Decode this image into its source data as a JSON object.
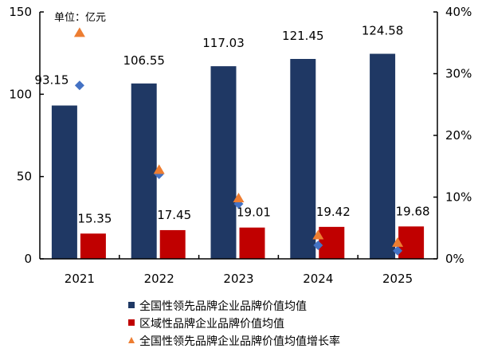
{
  "chart_data": {
    "type": "bar",
    "unit_label": "单位：亿元",
    "categories": [
      "2021",
      "2022",
      "2023",
      "2024",
      "2025"
    ],
    "y_left": {
      "range": [
        0,
        150
      ],
      "ticks": [
        "0",
        "50",
        "100",
        "150"
      ]
    },
    "y_right": {
      "range": [
        0,
        40
      ],
      "ticks": [
        "0%",
        "10%",
        "20%",
        "30%",
        "40%"
      ]
    },
    "grid": false,
    "legend_position": "bottom",
    "series": [
      {
        "name": "全国性领先品牌企业品牌价值均值",
        "type": "bar",
        "axis": "left",
        "color": "#1f3864",
        "values": [
          93.15,
          106.55,
          117.03,
          121.45,
          124.58
        ],
        "labels": [
          "93.15",
          "106.55",
          "117.03",
          "121.45",
          "124.58"
        ]
      },
      {
        "name": "区域性品牌企业品牌价值均值",
        "type": "bar",
        "axis": "left",
        "color": "#c00000",
        "values": [
          15.35,
          17.45,
          19.01,
          19.42,
          19.68
        ],
        "labels": [
          "15.35",
          "17.45",
          "19.01",
          "19.42",
          "19.68"
        ]
      },
      {
        "name": "全国性领先品牌企业品牌价值均值增长率",
        "type": "scatter",
        "marker": "triangle",
        "axis": "right",
        "color": "#ed7d31",
        "values": [
          36.6,
          14.4,
          9.8,
          3.8,
          2.6
        ]
      },
      {
        "type": "scatter",
        "marker": "diamond",
        "axis": "right",
        "color": "#4472c4",
        "values": [
          28.1,
          13.7,
          8.9,
          2.2,
          1.3
        ]
      }
    ]
  }
}
